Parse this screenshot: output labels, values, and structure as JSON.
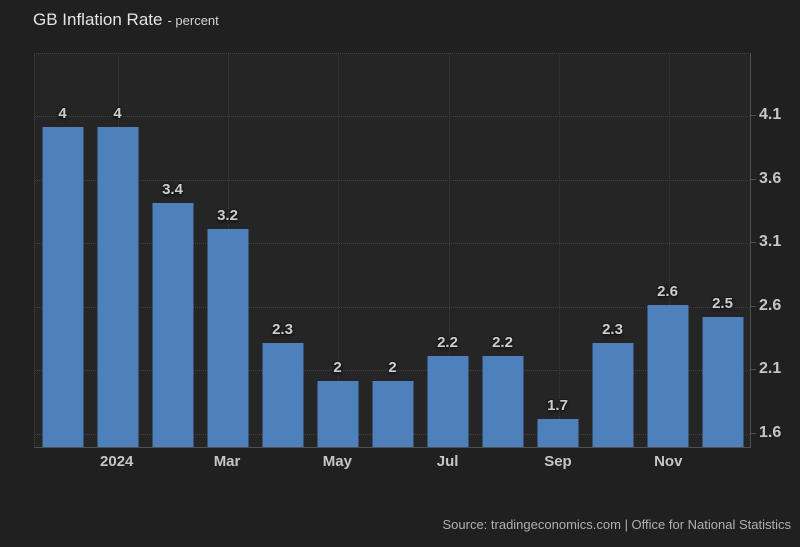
{
  "title": {
    "main": "GB Inflation Rate",
    "subtitle": "- percent"
  },
  "source": "Source: tradingeconomics.com | Office for National Statistics",
  "colors": {
    "page_background": "#202020",
    "plot_background": "#252525",
    "bar": "#4e80bc",
    "gridline": "#404040",
    "axis_line": "#505050",
    "tick_text": "#c6c6c6",
    "value_text": "#cdcdcd",
    "title_text": "#e4e4e4",
    "source_text": "#b0b0b0"
  },
  "chart_data": {
    "type": "bar",
    "title": "GB Inflation Rate",
    "unit": "percent",
    "values": [
      4,
      4,
      3.4,
      3.2,
      2.3,
      2,
      2,
      2.2,
      2.2,
      1.7,
      2.3,
      2.6,
      2.5
    ],
    "bar_labels": [
      "4",
      "4",
      "3.4",
      "3.2",
      "2.3",
      "2",
      "2",
      "2.2",
      "2.2",
      "1.7",
      "2.3",
      "2.6",
      "2.5"
    ],
    "x_ticks": [
      {
        "index": 1,
        "label": "2024"
      },
      {
        "index": 3,
        "label": "Mar"
      },
      {
        "index": 5,
        "label": "May"
      },
      {
        "index": 7,
        "label": "Jul"
      },
      {
        "index": 9,
        "label": "Sep"
      },
      {
        "index": 11,
        "label": "Nov"
      }
    ],
    "y_ticks": [
      4.1,
      3.6,
      3.1,
      2.6,
      2.1,
      1.6
    ],
    "ylim": [
      1.48,
      4.59
    ],
    "grid": "dotted",
    "legend": "none",
    "y_axis_side": "right"
  }
}
